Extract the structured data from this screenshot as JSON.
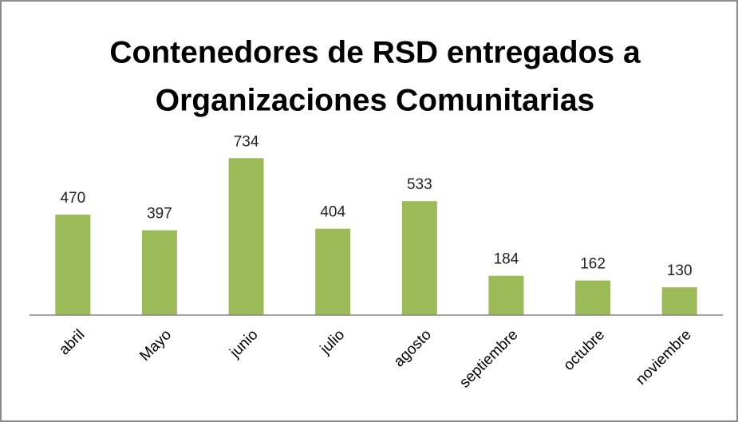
{
  "chart_data": {
    "type": "bar",
    "title": [
      "Contenedores de RSD entregados a",
      "Organizaciones Comunitarias"
    ],
    "categories": [
      "abril",
      "Mayo",
      "junio",
      "julio",
      "agosto",
      "septiembre",
      "octubre",
      "noviembre"
    ],
    "values": [
      470,
      397,
      734,
      404,
      533,
      184,
      162,
      130
    ],
    "color": "#9bbb59"
  }
}
